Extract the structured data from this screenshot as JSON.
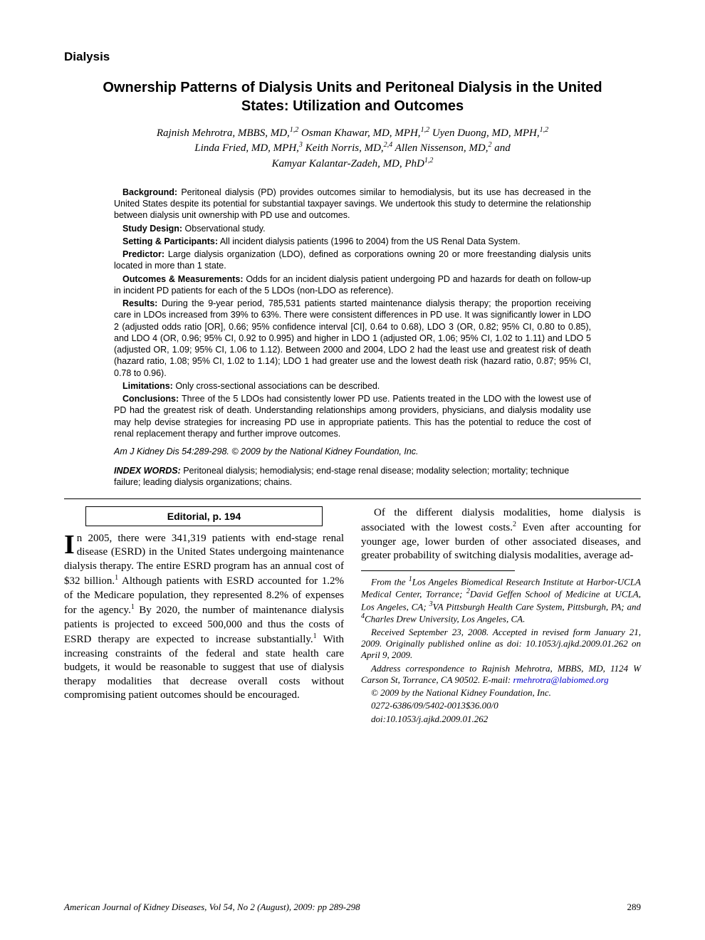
{
  "section_label": "Dialysis",
  "title": "Ownership Patterns of Dialysis Units and Peritoneal Dialysis in the United States: Utilization and Outcomes",
  "authors_line1": "Rajnish Mehrotra, MBBS, MD,",
  "authors_sup1": "1,2",
  "authors_line1b": " Osman Khawar, MD, MPH,",
  "authors_sup1b": "1,2",
  "authors_line1c": " Uyen Duong, MD, MPH,",
  "authors_sup1c": "1,2",
  "authors_line2a": "Linda Fried, MD, MPH,",
  "authors_sup2a": "3",
  "authors_line2b": " Keith Norris, MD,",
  "authors_sup2b": "2,4",
  "authors_line2c": " Allen Nissenson, MD,",
  "authors_sup2c": "2",
  "authors_line2d": " and",
  "authors_line3a": "Kamyar Kalantar-Zadeh, MD, PhD",
  "authors_sup3a": "1,2",
  "abstract": {
    "background_label": "Background:",
    "background": " Peritoneal dialysis (PD) provides outcomes similar to hemodialysis, but its use has decreased in the United States despite its potential for substantial taxpayer savings. We undertook this study to determine the relationship between dialysis unit ownership with PD use and outcomes.",
    "design_label": "Study Design:",
    "design": " Observational study.",
    "setting_label": "Setting & Participants:",
    "setting": " All incident dialysis patients (1996 to 2004) from the US Renal Data System.",
    "predictor_label": "Predictor:",
    "predictor": " Large dialysis organization (LDO), defined as corporations owning 20 or more freestanding dialysis units located in more than 1 state.",
    "outcomes_label": "Outcomes & Measurements:",
    "outcomes": " Odds for an incident dialysis patient undergoing PD and hazards for death on follow-up in incident PD patients for each of the 5 LDOs (non-LDO as reference).",
    "results_label": "Results:",
    "results": " During the 9-year period, 785,531 patients started maintenance dialysis therapy; the proportion receiving care in LDOs increased from 39% to 63%. There were consistent differences in PD use. It was significantly lower in LDO 2 (adjusted odds ratio [OR], 0.66; 95% confidence interval [CI], 0.64 to 0.68), LDO 3 (OR, 0.82; 95% CI, 0.80 to 0.85), and LDO 4 (OR, 0.96; 95% CI, 0.92 to 0.995) and higher in LDO 1 (adjusted OR, 1.06; 95% CI, 1.02 to 1.11) and LDO 5 (adjusted OR, 1.09; 95% CI, 1.06 to 1.12). Between 2000 and 2004, LDO 2 had the least use and greatest risk of death (hazard ratio, 1.08; 95% CI, 1.02 to 1.14); LDO 1 had greater use and the lowest death risk (hazard ratio, 0.87; 95% CI, 0.78 to 0.96).",
    "limitations_label": "Limitations:",
    "limitations": " Only cross-sectional associations can be described.",
    "conclusions_label": "Conclusions:",
    "conclusions": " Three of the 5 LDOs had consistently lower PD use. Patients treated in the LDO with the lowest use of PD had the greatest risk of death. Understanding relationships among providers, physicians, and dialysis modality use may help devise strategies for increasing PD use in appropriate patients. This has the potential to reduce the cost of renal replacement therapy and further improve outcomes."
  },
  "citation": "Am J Kidney Dis 54:289-298. © 2009 by the National Kidney Foundation, Inc.",
  "index_label": "INDEX WORDS:",
  "index_words": " Peritoneal dialysis; hemodialysis; end-stage renal disease; modality selection; mortality; technique failure; leading dialysis organizations; chains.",
  "editorial_box": "Editorial, p. 194",
  "body": {
    "dropcap": "I",
    "para1_start": "n 2005, there were 341,319 patients with end-stage renal disease (ESRD) in the United States undergoing maintenance dialysis therapy. The entire ESRD program has an annual cost of $32 billion.",
    "sup1": "1",
    "para1_mid": " Although patients with ESRD accounted for 1.2% of the Medicare population, they represented 8.2% of expenses for the agency.",
    "sup1b": "1",
    "para1_mid2": " By 2020, the number of maintenance dialysis patients is projected to exceed 500,000 and thus the costs of ESRD therapy are expected to increase substantially.",
    "sup1c": "1",
    "para1_end": " With increasing constraints of the federal and state health care budgets, it would be reasonable to suggest that use of dialysis therapy modalities that decrease overall costs without compromising patient outcomes should be encouraged.",
    "para2_start": "Of the different dialysis modalities, home dialysis is associated with the lowest costs.",
    "sup2": "2",
    "para2_end": " Even after accounting for younger age, lower burden of other associated diseases, and greater probability of switching dialysis modalities, average ad-"
  },
  "affil": {
    "from_label": "From the ",
    "a1_sup": "1",
    "a1": "Los Angeles Biomedical Research Institute at Harbor-UCLA Medical Center, Torrance; ",
    "a2_sup": "2",
    "a2": "David Geffen School of Medicine at UCLA, Los Angeles, CA; ",
    "a3_sup": "3",
    "a3": "VA Pittsburgh Health Care System, Pittsburgh, PA; and ",
    "a4_sup": "4",
    "a4": "Charles Drew University, Los Angeles, CA.",
    "received": "Received September 23, 2008. Accepted in revised form January 21, 2009. Originally published online as doi: 10.1053/j.ajkd.2009.01.262 on April 9, 2009.",
    "address": "Address correspondence to Rajnish Mehrotra, MBBS, MD, 1124 W Carson St, Torrance, CA 90502. E-mail: ",
    "email": "rmehrotra@labiomed.org",
    "copyright": "© 2009 by the National Kidney Foundation, Inc.",
    "issn": "0272-6386/09/5402-0013$36.00/0",
    "doi": "doi:10.1053/j.ajkd.2009.01.262"
  },
  "footer": {
    "journal": "American Journal of Kidney Diseases, Vol 54, No 2 (August), 2009: pp 289-298",
    "page": "289"
  },
  "colors": {
    "text": "#000000",
    "bg": "#ffffff",
    "link": "#0000cc"
  }
}
